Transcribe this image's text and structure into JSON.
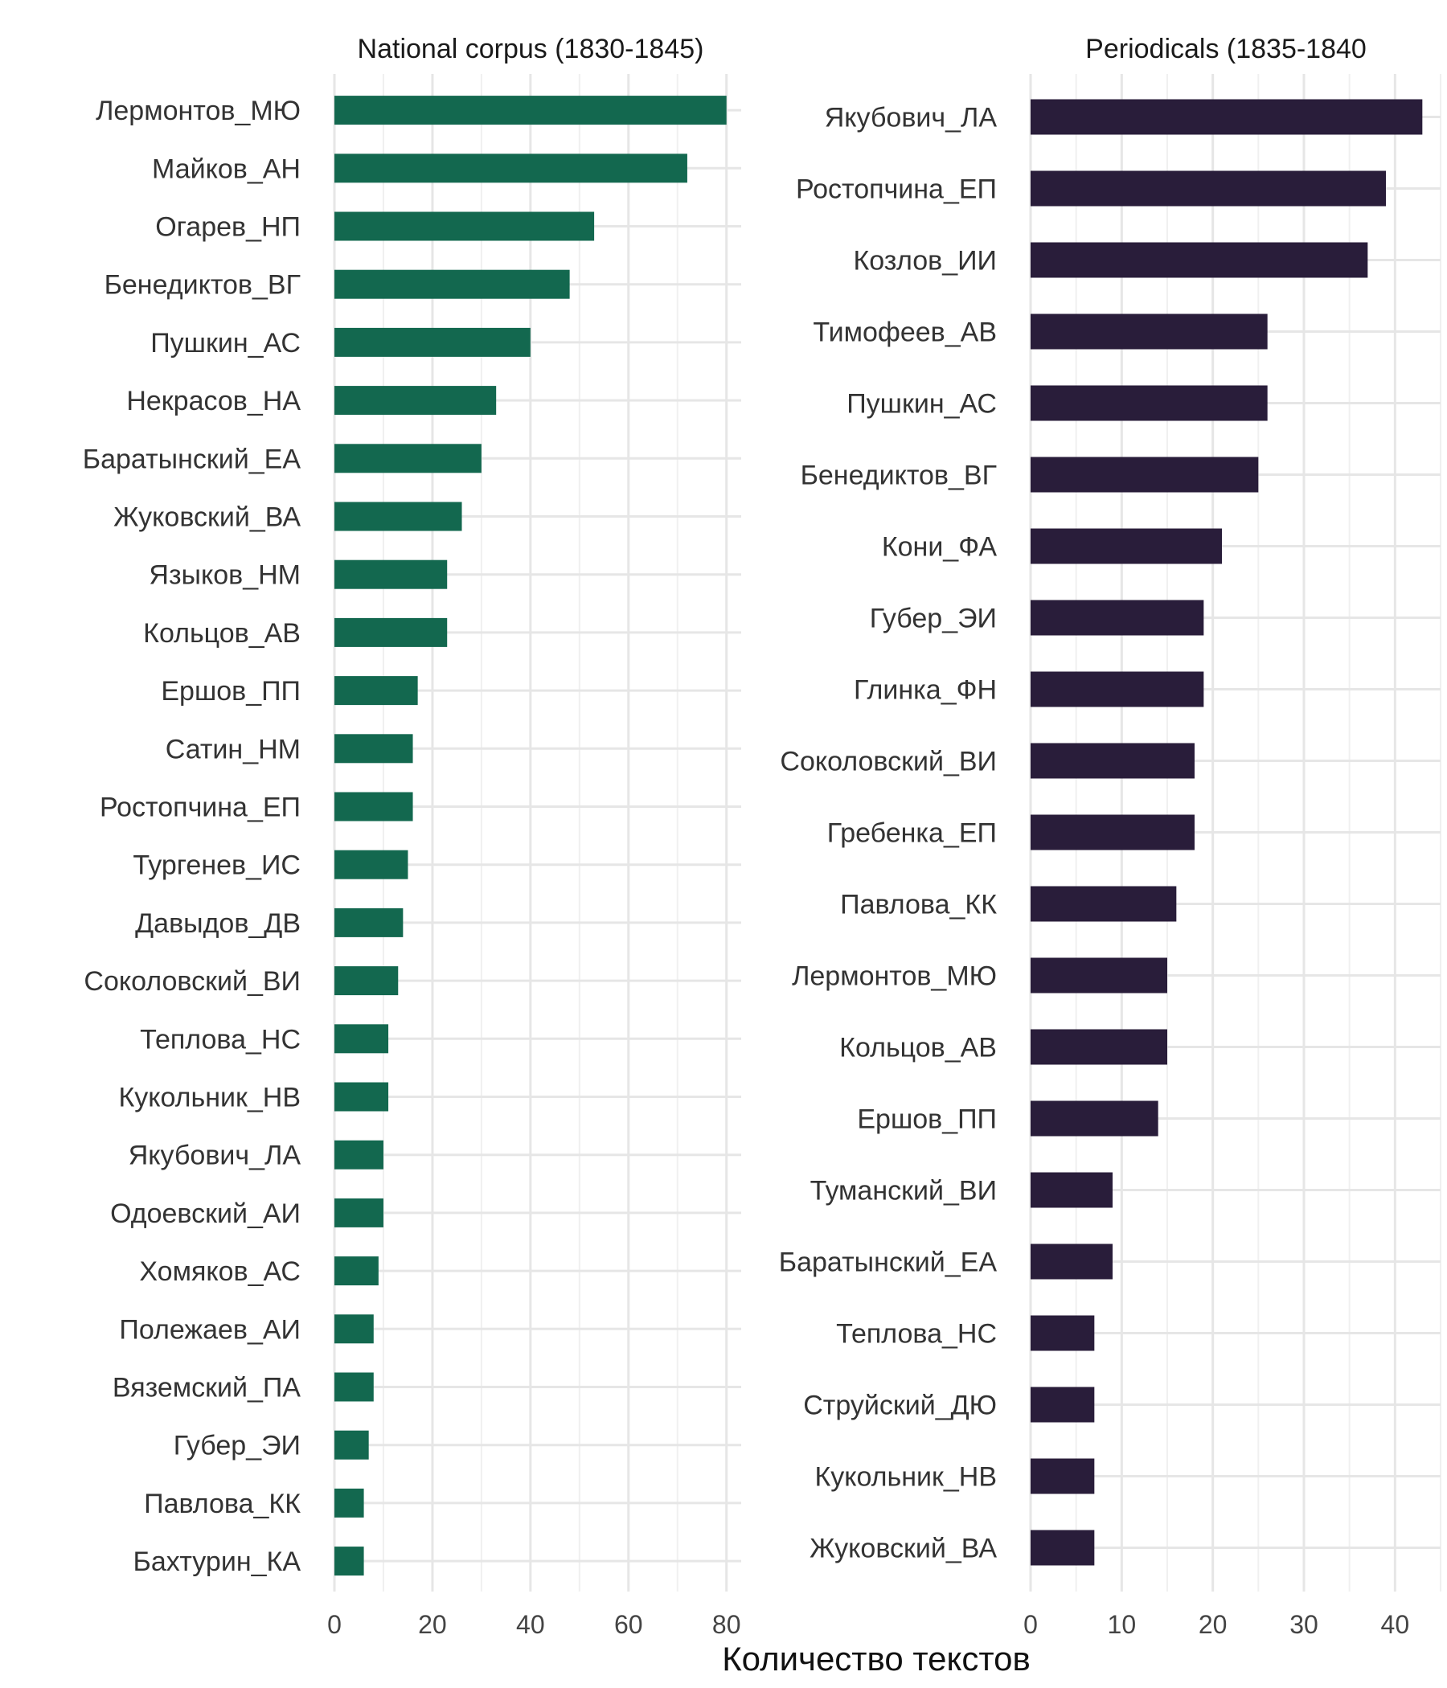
{
  "chart_data": [
    {
      "type": "bar",
      "orientation": "horizontal",
      "title": "National corpus (1830-1845)",
      "categories": [
        "Лермонтов_МЮ",
        "Майков_АН",
        "Огарев_НП",
        "Бенедиктов_ВГ",
        "Пушкин_АС",
        "Некрасов_НА",
        "Баратынский_ЕА",
        "Жуковский_ВА",
        "Языков_НМ",
        "Кольцов_АВ",
        "Ершов_ПП",
        "Сатин_НМ",
        "Ростопчина_ЕП",
        "Тургенев_ИС",
        "Давыдов_ДВ",
        "Соколовский_ВИ",
        "Теплова_НС",
        "Кукольник_НВ",
        "Якубович_ЛА",
        "Одоевский_АИ",
        "Хомяков_АС",
        "Полежаев_АИ",
        "Вяземский_ПА",
        "Губер_ЭИ",
        "Павлова_КК",
        "Бахтурин_КА"
      ],
      "values": [
        80,
        72,
        53,
        48,
        40,
        33,
        30,
        26,
        23,
        23,
        17,
        16,
        16,
        15,
        14,
        13,
        11,
        11,
        10,
        10,
        9,
        8,
        8,
        7,
        6,
        6
      ],
      "xlim": [
        0,
        83
      ],
      "ticks": [
        0,
        20,
        40,
        60,
        80
      ],
      "tick_labels": [
        "0",
        "20",
        "40",
        "60",
        "80"
      ],
      "color": "#13684f",
      "grid": true
    },
    {
      "type": "bar",
      "orientation": "horizontal",
      "title": "Periodicals (1835-1840",
      "categories": [
        "Якубович_ЛА",
        "Ростопчина_ЕП",
        "Козлов_ИИ",
        "Тимофеев_АВ",
        "Пушкин_АС",
        "Бенедиктов_ВГ",
        "Кони_ФА",
        "Губер_ЭИ",
        "Глинка_ФН",
        "Соколовский_ВИ",
        "Гребенка_ЕП",
        "Павлова_КК",
        "Лермонтов_МЮ",
        "Кольцов_АВ",
        "Ершов_ПП",
        "Туманский_ВИ",
        "Баратынский_ЕА",
        "Теплова_НС",
        "Струйский_ДЮ",
        "Кукольник_НВ",
        "Жуковский_ВА"
      ],
      "values": [
        43,
        39,
        37,
        26,
        26,
        25,
        21,
        19,
        19,
        18,
        18,
        16,
        15,
        15,
        14,
        9,
        9,
        7,
        7,
        7,
        7
      ],
      "xlim": [
        0,
        45
      ],
      "ticks": [
        0,
        10,
        20,
        30,
        40
      ],
      "tick_labels": [
        "0",
        "10",
        "20",
        "30",
        "40"
      ],
      "color": "#291d3a",
      "grid": true
    }
  ],
  "xlabel": "Количество текстов"
}
